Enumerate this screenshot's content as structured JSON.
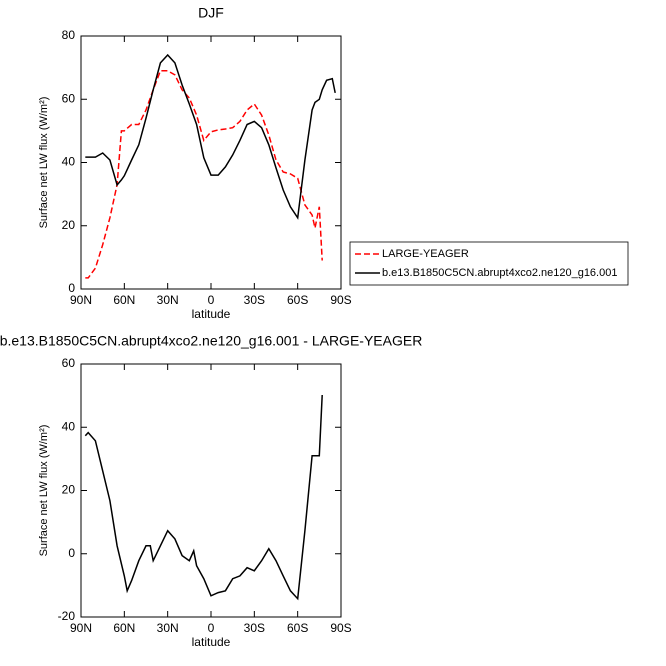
{
  "chart_data": [
    {
      "type": "line",
      "title": "DJF",
      "xlabel": "latitude",
      "ylabel": "Surface net LW flux (W/m²)",
      "x": [
        87,
        85,
        80,
        75,
        70,
        65,
        62,
        60,
        55,
        50,
        45,
        40,
        35,
        30,
        25,
        20,
        15,
        10,
        5,
        0,
        -5,
        -10,
        -15,
        -20,
        -25,
        -30,
        -35,
        -40,
        -45,
        -50,
        -55,
        -60,
        -65,
        -70,
        -72,
        -75,
        -77,
        -80,
        -84,
        -86
      ],
      "series": [
        {
          "name": "LARGE-YEAGER",
          "color": "#ff0000",
          "dash": true,
          "values": [
            3.5,
            3.5,
            6.6,
            14,
            22.5,
            33,
            50,
            50,
            52,
            52,
            56.6,
            63,
            69,
            69,
            67.7,
            63,
            60.4,
            55,
            47,
            49.7,
            50.3,
            50.6,
            51,
            53,
            56.6,
            58.5,
            55,
            48.7,
            40.8,
            37,
            36.4,
            35,
            26.6,
            23.4,
            19.3,
            26,
            9,
            null,
            null,
            null
          ]
        },
        {
          "name": "b.e13.B1850C5CN.abrupt4xco2.ne120_g16.001",
          "color": "#000000",
          "dash": false,
          "values": [
            41.7,
            41.7,
            41.7,
            43,
            40.8,
            32.9,
            34.5,
            35.8,
            40.8,
            45.6,
            54,
            63,
            71.5,
            74,
            71.5,
            64.5,
            58.5,
            52,
            41.5,
            36,
            36,
            38.6,
            42.4,
            47,
            52,
            53,
            51,
            45.6,
            38.3,
            31.3,
            26,
            22.5,
            40.8,
            56.6,
            59,
            60,
            63,
            66,
            66.5,
            62
          ]
        }
      ],
      "xlim": [
        90,
        -90
      ],
      "xticks": [
        {
          "value": 90,
          "label": "90N"
        },
        {
          "value": 60,
          "label": "60N"
        },
        {
          "value": 30,
          "label": "30N"
        },
        0,
        {
          "value": -30,
          "label": "30S"
        },
        {
          "value": -60,
          "label": "60S"
        },
        {
          "value": -90,
          "label": "90S"
        }
      ],
      "ylim": [
        0,
        80
      ],
      "yticks": [
        0,
        20,
        40,
        60,
        80
      ],
      "legend": "right"
    },
    {
      "type": "line",
      "title": "b.e13.B1850C5CN.abrupt4xco2.ne120_g16.001 - LARGE-YEAGER",
      "xlabel": "latitude",
      "ylabel": "Surface net LW flux (W/m²)",
      "x": [
        87,
        85,
        80,
        75,
        70,
        65,
        60,
        58,
        55,
        50,
        45,
        42,
        40,
        35,
        30,
        25,
        20,
        15,
        12,
        10,
        5,
        0,
        -5,
        -10,
        -15,
        -20,
        -25,
        -30,
        -35,
        -40,
        -45,
        -50,
        -55,
        -60,
        -65,
        -70,
        -75,
        -77
      ],
      "values": [
        37.3,
        38.3,
        35.7,
        26.2,
        16.8,
        2.5,
        -7,
        -11.7,
        -8.5,
        -2.2,
        2.5,
        2.5,
        -2.2,
        2.5,
        7.3,
        4.7,
        -0.6,
        -2.2,
        0.9,
        -3.8,
        -7.9,
        -13.3,
        -12.3,
        -11.7,
        -7.9,
        -7,
        -4.4,
        -5.4,
        -2.2,
        1.6,
        -2.2,
        -7,
        -11.7,
        -14.2,
        7.3,
        31,
        31,
        50.2
      ],
      "color": "#000000",
      "xlim": [
        90,
        -90
      ],
      "xticks": [
        {
          "value": 90,
          "label": "90N"
        },
        {
          "value": 60,
          "label": "60N"
        },
        {
          "value": 30,
          "label": "30N"
        },
        0,
        {
          "value": -30,
          "label": "30S"
        },
        {
          "value": -60,
          "label": "60S"
        },
        {
          "value": -90,
          "label": "90S"
        }
      ],
      "ylim": [
        -20,
        60
      ],
      "yticks": [
        -20,
        0,
        20,
        40,
        60
      ]
    }
  ]
}
